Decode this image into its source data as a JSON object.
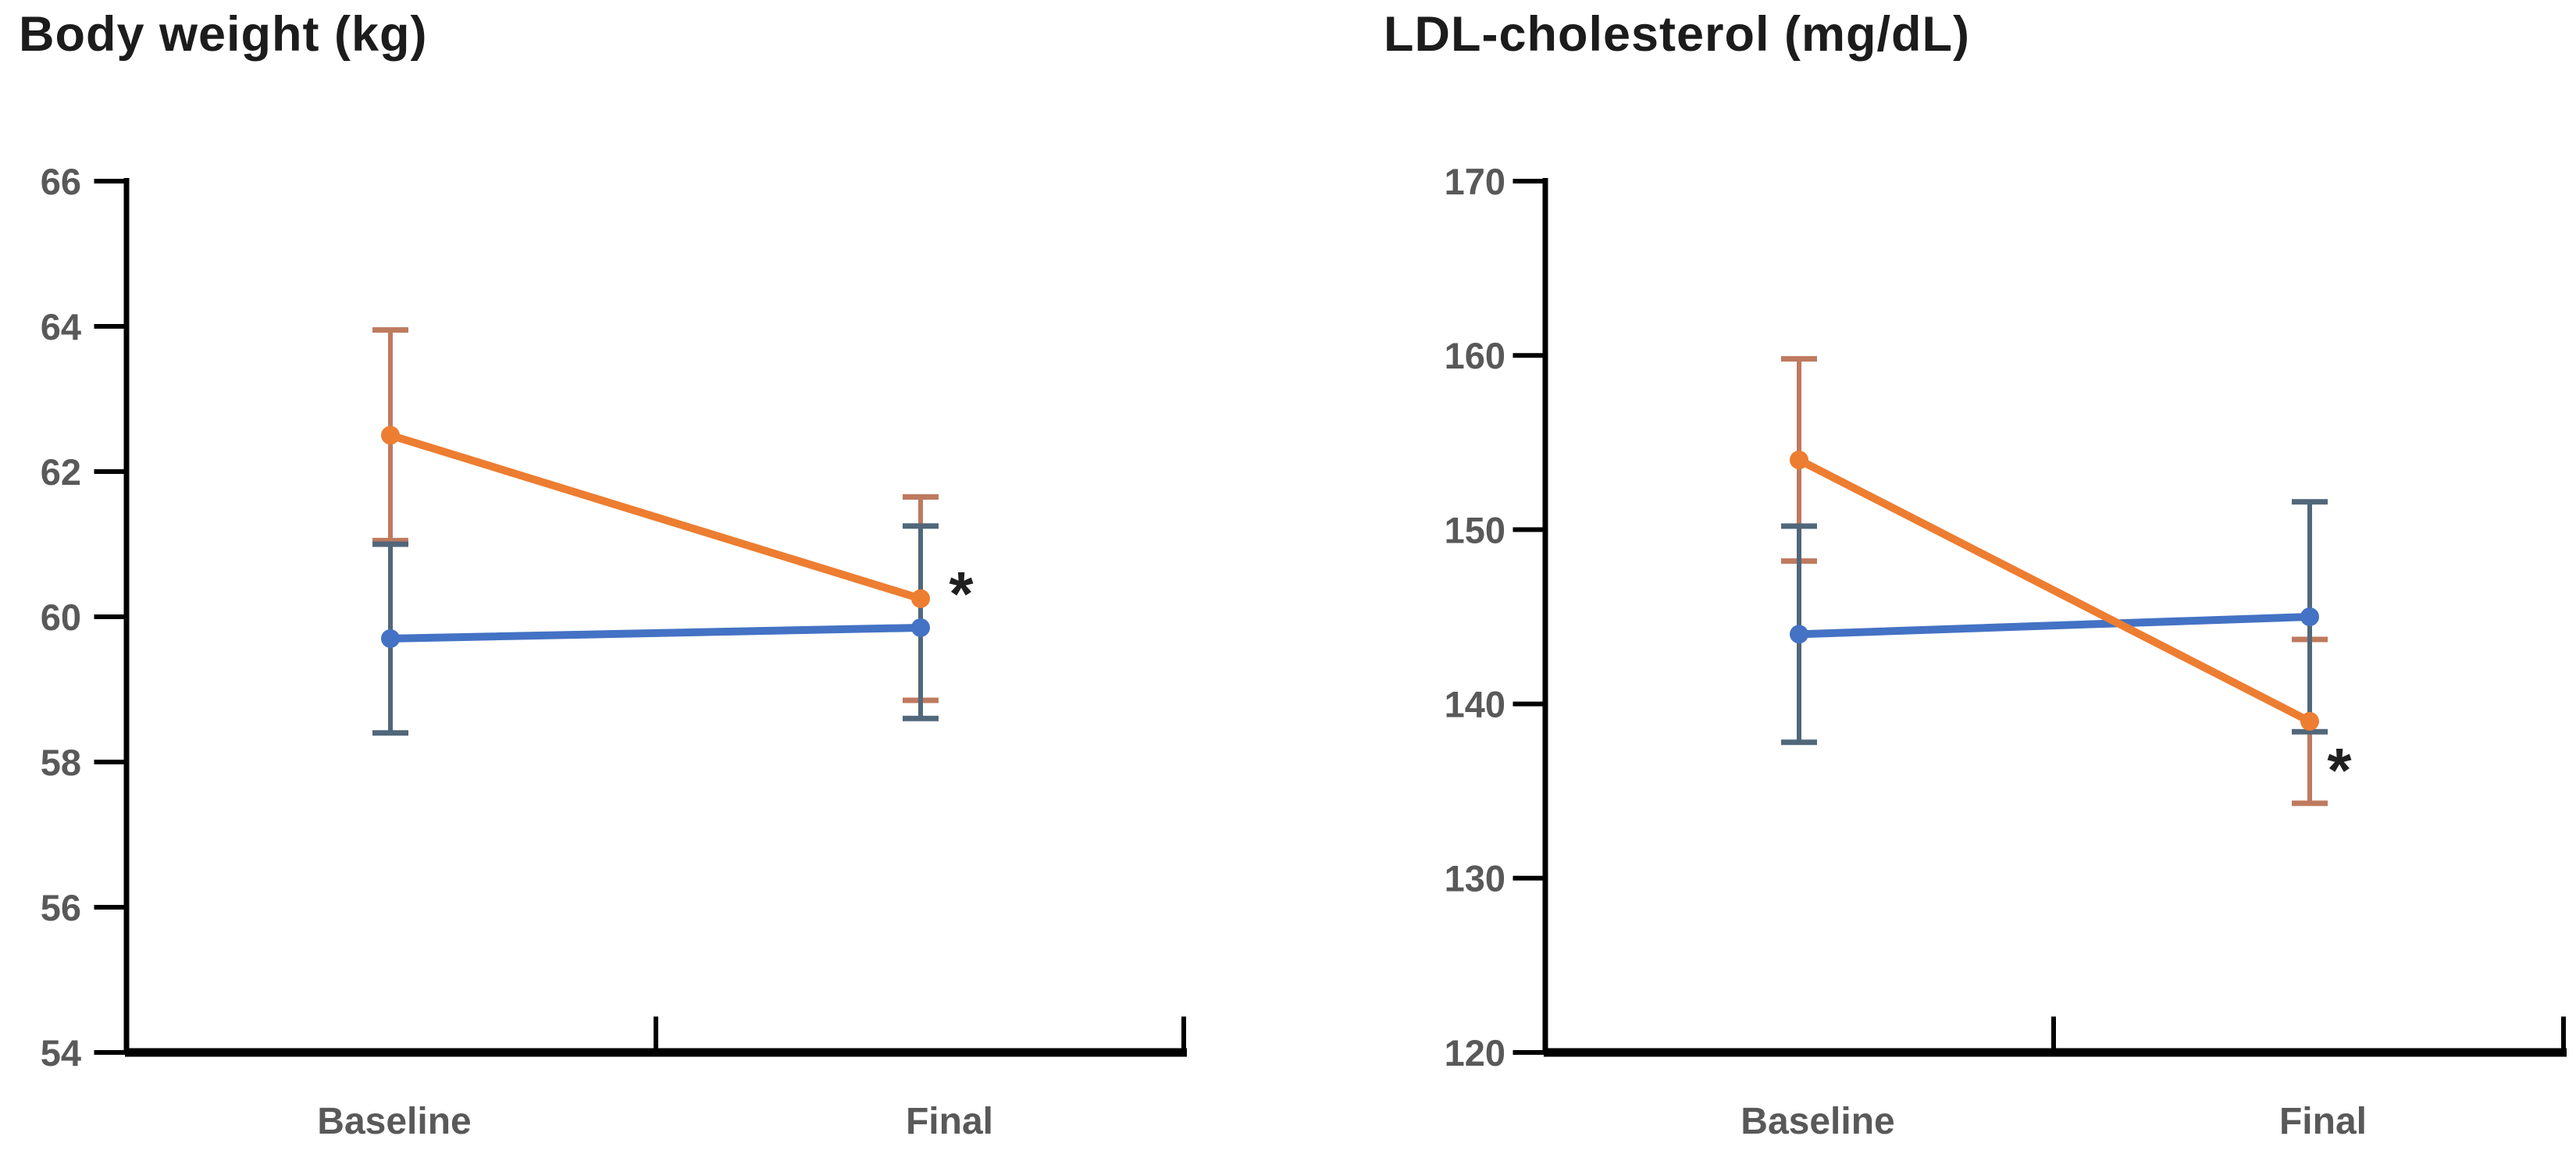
{
  "page": {
    "background": "#ffffff"
  },
  "chart_data": [
    {
      "type": "line",
      "title": "Body weight (kg)",
      "categories": [
        "Baseline",
        "Final"
      ],
      "xlabel": "",
      "ylabel": "",
      "ylim": [
        54,
        66
      ],
      "yticks": [
        66,
        64,
        62,
        60,
        58,
        56,
        54
      ],
      "grid": false,
      "legend_position": "none",
      "axis_label_color": "#595959",
      "axis_line_color": "#000000",
      "series": [
        {
          "name": "blue",
          "color": "#4472C4",
          "error_color": "#51677A",
          "values": [
            59.7,
            59.85
          ],
          "err_low": [
            58.4,
            58.6
          ],
          "err_high": [
            61.0,
            61.25
          ]
        },
        {
          "name": "orange",
          "color": "#ED7D31",
          "error_color": "#BE7A5E",
          "values": [
            62.5,
            60.25
          ],
          "err_low": [
            61.05,
            58.85
          ],
          "err_high": [
            63.95,
            61.65
          ]
        }
      ],
      "annotations": [
        {
          "text": "*",
          "series": "orange",
          "category": "Final"
        }
      ]
    },
    {
      "type": "line",
      "title": "LDL-cholesterol (mg/dL)",
      "categories": [
        "Baseline",
        "Final"
      ],
      "xlabel": "",
      "ylabel": "",
      "ylim": [
        120,
        170
      ],
      "yticks": [
        170,
        160,
        150,
        140,
        130,
        120
      ],
      "grid": false,
      "legend_position": "none",
      "axis_label_color": "#595959",
      "axis_line_color": "#000000",
      "series": [
        {
          "name": "blue",
          "color": "#4472C4",
          "error_color": "#51677A",
          "values": [
            144,
            145
          ],
          "err_low": [
            137.8,
            138.4
          ],
          "err_high": [
            150.2,
            151.6
          ]
        },
        {
          "name": "orange",
          "color": "#ED7D31",
          "error_color": "#BE7A5E",
          "values": [
            154,
            139
          ],
          "err_low": [
            148.2,
            134.3
          ],
          "err_high": [
            159.8,
            143.7
          ]
        }
      ],
      "annotations": [
        {
          "text": "*",
          "series": "orange",
          "category": "Final"
        }
      ]
    }
  ]
}
